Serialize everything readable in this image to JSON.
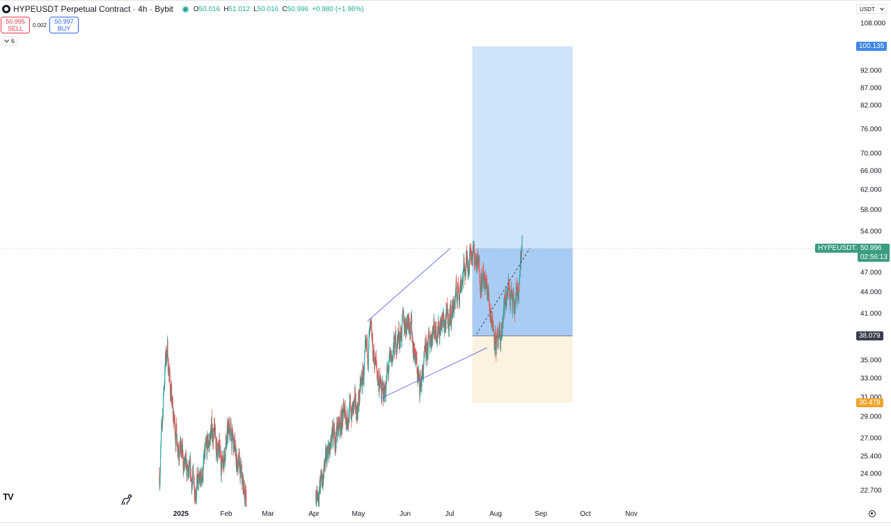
{
  "header": {
    "title": "HYPEUSDT Perpetual Contract · 4h · Bybit",
    "ohlc": {
      "o": "50.016",
      "h": "51.012",
      "l": "50.016",
      "c": "50.996"
    },
    "change": "+0.980 (+1.96%)"
  },
  "trade": {
    "sell_price": "50.995",
    "sell_label": "SELL",
    "spread": "0.002",
    "buy_price": "50.997",
    "buy_label": "BUY"
  },
  "indicators_collapsed_count": "6",
  "currency_selector": "USDT",
  "price_scale": [
    "108.000",
    "92.000",
    "87.000",
    "82.000",
    "76.000",
    "70.000",
    "66.000",
    "62.000",
    "58.000",
    "54.000",
    "47.000",
    "44.000",
    "41.000",
    "35.000",
    "33.000",
    "31.000",
    "29.000",
    "27.000",
    "25.400",
    "24.000",
    "22.700"
  ],
  "markers": {
    "target": "100.135",
    "symbol_tag": "HYPEUSDT.P",
    "last_price": "50.996",
    "countdown": "02:56:13",
    "entry": "38.079",
    "stop": "30.478"
  },
  "time_axis": [
    "2025",
    "Feb",
    "Mar",
    "Apr",
    "May",
    "Jun",
    "Jul",
    "Aug",
    "Sep",
    "Oct",
    "Nov"
  ],
  "colors": {
    "up": "#26a69a",
    "down": "#ef5350",
    "profit_zone": "#cfe3f9",
    "profit_zone_entry": "#a9ccf3",
    "risk_zone": "#fbf2e1",
    "trendline": "#6b6fe6",
    "target_tag": "#3d86e6",
    "stop_tag": "#f0a32a",
    "entry_tag": "#3a3f4b",
    "price_tag": "#3b9c82"
  },
  "chart_data": {
    "type": "candlestick",
    "title": "HYPEUSDT Perpetual Contract · 4h · Bybit",
    "x_range": [
      "2025-01-01",
      "2025-11-30"
    ],
    "y_scale": "log",
    "y_range": [
      21.5,
      112
    ],
    "segments": [
      {
        "from": "2025-01-01",
        "to": "2025-03-01",
        "price_path": [
          [
            0,
            24
          ],
          [
            0.05,
            33
          ],
          [
            0.08,
            37
          ],
          [
            0.15,
            29
          ],
          [
            0.3,
            24
          ],
          [
            0.45,
            23
          ],
          [
            0.6,
            28
          ],
          [
            0.7,
            25
          ],
          [
            0.8,
            28
          ],
          [
            0.92,
            24
          ],
          [
            1,
            22
          ]
        ]
      },
      {
        "from": "2025-04-17",
        "to": "2025-09-04",
        "price_path": [
          [
            0,
            22
          ],
          [
            0.05,
            25
          ],
          [
            0.12,
            29
          ],
          [
            0.2,
            30
          ],
          [
            0.26,
            38
          ],
          [
            0.32,
            31
          ],
          [
            0.38,
            37
          ],
          [
            0.45,
            41
          ],
          [
            0.5,
            32
          ],
          [
            0.56,
            39
          ],
          [
            0.64,
            40
          ],
          [
            0.75,
            51
          ],
          [
            0.83,
            44
          ],
          [
            0.88,
            36
          ],
          [
            0.93,
            45
          ],
          [
            0.96,
            41
          ],
          [
            1,
            52
          ]
        ]
      }
    ],
    "long_position": {
      "entry": 38.079,
      "target": 100.135,
      "stop": 30.478,
      "start": "2025-08-01",
      "end": "2025-10-08"
    },
    "trendlines": [
      {
        "from": [
          "2025-05-22",
          40.0
        ],
        "to": [
          "2025-07-17",
          51.0
        ]
      },
      {
        "from": [
          "2025-05-31",
          30.9
        ],
        "to": [
          "2025-08-11",
          36.6
        ]
      },
      {
        "from": [
          "2025-08-04",
          38.3
        ],
        "to": [
          "2025-09-09",
          51.0
        ],
        "style": "dashed"
      }
    ],
    "last_price": 50.996
  }
}
